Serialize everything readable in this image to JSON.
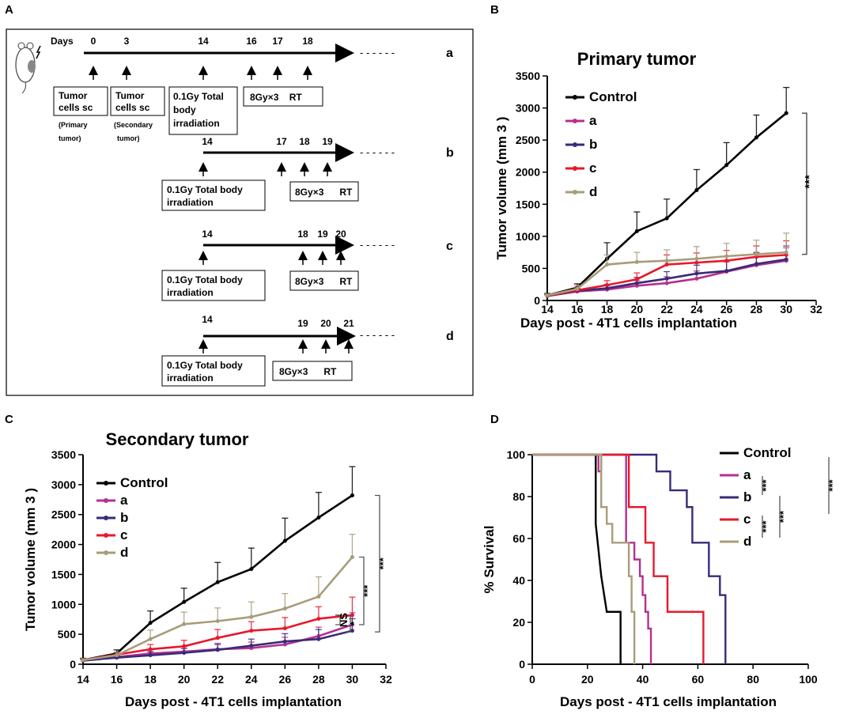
{
  "panels": {
    "A": "A",
    "B": "B",
    "C": "C",
    "D": "D"
  },
  "schema": {
    "days_label": "Days",
    "group_names": [
      "a",
      "b",
      "c",
      "d"
    ],
    "dashes": "- - - - - -",
    "row_a": {
      "days": [
        "0",
        "3",
        "14",
        "16",
        "17",
        "18"
      ],
      "box_tumor": "Tumor",
      "box_cells": "cells sc",
      "box_primary": "(Primary",
      "box_primary2": "tumor)",
      "box_secondary": "(Secondary",
      "box_secondary2": "tumor)",
      "tbi_line1": "0.1Gy Total",
      "tbi_line2": "body",
      "tbi_line3": "irradiation",
      "rt_text": "8Gy×3    RT"
    },
    "row_b": {
      "days": [
        "14",
        "17",
        "18",
        "19"
      ],
      "tbi_line1": "0.1Gy Total body",
      "tbi_line2": "irradiation",
      "rt_text": "8Gy×3      RT"
    },
    "row_c": {
      "days": [
        "14",
        "18",
        "19",
        "20"
      ],
      "tbi_line1": "0.1Gy Total body",
      "tbi_line2": "irradiation",
      "rt_text": "8Gy×3      RT"
    },
    "row_d": {
      "days": [
        "14",
        "19",
        "20",
        "21"
      ],
      "tbi_line1": "0.1Gy Total body",
      "tbi_line2": "irradiation",
      "rt_text": "8Gy×3      RT"
    }
  },
  "colors": {
    "Control": "#000000",
    "a": "#b5308f",
    "b": "#3a2a78",
    "c": "#e8182c",
    "d": "#a89d7a"
  },
  "chart_data": [
    {
      "panel": "B",
      "type": "line",
      "title": "Primary tumor",
      "xlabel": "Days post - 4T1 cells implantation",
      "ylabel": "Tumor volume (mm 3 )",
      "xlim": [
        14,
        32
      ],
      "ylim": [
        0,
        3500
      ],
      "xticks": [
        14,
        16,
        18,
        20,
        22,
        24,
        26,
        28,
        30,
        32
      ],
      "yticks": [
        0,
        500,
        1000,
        1500,
        2000,
        2500,
        3000,
        3500
      ],
      "x": [
        14,
        16,
        18,
        20,
        22,
        24,
        26,
        28,
        30
      ],
      "legend": [
        "Control",
        "a",
        "b",
        "c",
        "d"
      ],
      "series": [
        {
          "name": "Control",
          "values": [
            80,
            200,
            650,
            1080,
            1280,
            1720,
            2110,
            2540,
            2920
          ],
          "err": [
            30,
            60,
            250,
            300,
            300,
            320,
            350,
            350,
            400
          ]
        },
        {
          "name": "a",
          "values": [
            70,
            140,
            170,
            230,
            270,
            340,
            450,
            550,
            620
          ],
          "err": [
            20,
            40,
            60,
            80,
            100,
            120,
            150,
            180,
            200
          ]
        },
        {
          "name": "b",
          "values": [
            70,
            150,
            190,
            270,
            340,
            420,
            460,
            570,
            640
          ],
          "err": [
            20,
            40,
            60,
            90,
            110,
            130,
            160,
            180,
            210
          ]
        },
        {
          "name": "c",
          "values": [
            75,
            160,
            240,
            330,
            560,
            590,
            620,
            680,
            710
          ],
          "err": [
            20,
            40,
            70,
            100,
            150,
            150,
            160,
            170,
            220
          ]
        },
        {
          "name": "d",
          "values": [
            80,
            180,
            560,
            600,
            620,
            650,
            690,
            720,
            750
          ],
          "err": [
            20,
            50,
            150,
            150,
            170,
            190,
            200,
            220,
            300
          ]
        }
      ],
      "annotations": [
        "***"
      ]
    },
    {
      "panel": "C",
      "type": "line",
      "title": "Secondary tumor",
      "xlabel": "Days post - 4T1 cells implantation",
      "ylabel": "Tumor volume (mm 3 )",
      "xlim": [
        14,
        32
      ],
      "ylim": [
        0,
        3500
      ],
      "xticks": [
        14,
        16,
        18,
        20,
        22,
        24,
        26,
        28,
        30,
        32
      ],
      "yticks": [
        0,
        500,
        1000,
        1500,
        2000,
        2500,
        3000,
        3500
      ],
      "x": [
        14,
        16,
        18,
        20,
        22,
        24,
        26,
        28,
        30
      ],
      "legend": [
        "Control",
        "a",
        "b",
        "c",
        "d"
      ],
      "series": [
        {
          "name": "Control",
          "values": [
            70,
            180,
            690,
            1040,
            1370,
            1590,
            2060,
            2450,
            2820
          ],
          "err": [
            30,
            60,
            200,
            230,
            330,
            350,
            380,
            420,
            480
          ]
        },
        {
          "name": "a",
          "values": [
            60,
            120,
            180,
            210,
            250,
            270,
            330,
            470,
            660
          ],
          "err": [
            20,
            40,
            60,
            80,
            100,
            100,
            120,
            150,
            200
          ]
        },
        {
          "name": "b",
          "values": [
            60,
            110,
            150,
            190,
            240,
            310,
            380,
            420,
            560
          ],
          "err": [
            20,
            40,
            60,
            70,
            90,
            110,
            130,
            160,
            200
          ]
        },
        {
          "name": "c",
          "values": [
            70,
            160,
            250,
            300,
            440,
            560,
            600,
            760,
            820
          ],
          "err": [
            20,
            40,
            80,
            100,
            140,
            150,
            180,
            200,
            300
          ]
        },
        {
          "name": "d",
          "values": [
            70,
            150,
            420,
            670,
            720,
            790,
            930,
            1130,
            1790
          ],
          "err": [
            20,
            50,
            150,
            200,
            220,
            250,
            250,
            330,
            380
          ]
        }
      ],
      "annotations": [
        "***",
        "***",
        "*",
        "NS"
      ]
    },
    {
      "panel": "D",
      "type": "line",
      "subtype": "survival-step",
      "xlabel": "Days post - 4T1 cells implantation",
      "ylabel": "% Survival",
      "xlim": [
        0,
        100
      ],
      "ylim": [
        0,
        100
      ],
      "xticks": [
        0,
        20,
        40,
        60,
        80,
        100
      ],
      "yticks": [
        0,
        20,
        40,
        60,
        80,
        100
      ],
      "legend": [
        "Control",
        "a",
        "b",
        "c",
        "d"
      ],
      "series": [
        {
          "name": "Control",
          "steps": [
            [
              0,
              100
            ],
            [
              23,
              100
            ],
            [
              23,
              67
            ],
            [
              25,
              42
            ],
            [
              27,
              25
            ],
            [
              32,
              25
            ],
            [
              32,
              0
            ]
          ]
        },
        {
          "name": "a",
          "steps": [
            [
              0,
              100
            ],
            [
              24,
              100
            ],
            [
              24,
              92
            ],
            [
              25,
              92
            ],
            [
              25,
              100
            ],
            [
              34,
              100
            ],
            [
              34,
              58
            ],
            [
              37,
              58
            ],
            [
              37,
              50
            ],
            [
              39,
              50
            ],
            [
              39,
              42
            ],
            [
              40,
              42
            ],
            [
              40,
              33
            ],
            [
              41,
              33
            ],
            [
              41,
              25
            ],
            [
              42,
              25
            ],
            [
              42,
              17
            ],
            [
              43,
              17
            ],
            [
              43,
              0
            ]
          ]
        },
        {
          "name": "b",
          "steps": [
            [
              0,
              100
            ],
            [
              45,
              100
            ],
            [
              45,
              92
            ],
            [
              50,
              92
            ],
            [
              50,
              83
            ],
            [
              56,
              83
            ],
            [
              56,
              75
            ],
            [
              58,
              75
            ],
            [
              58,
              58
            ],
            [
              64,
              58
            ],
            [
              64,
              42
            ],
            [
              68,
              42
            ],
            [
              68,
              33
            ],
            [
              70,
              33
            ],
            [
              70,
              0
            ]
          ]
        },
        {
          "name": "c",
          "steps": [
            [
              0,
              100
            ],
            [
              35,
              100
            ],
            [
              35,
              75
            ],
            [
              41,
              75
            ],
            [
              41,
              58
            ],
            [
              44,
              58
            ],
            [
              44,
              42
            ],
            [
              49,
              42
            ],
            [
              49,
              25
            ],
            [
              62,
              25
            ],
            [
              62,
              0
            ]
          ]
        },
        {
          "name": "d",
          "steps": [
            [
              0,
              100
            ],
            [
              25,
              100
            ],
            [
              25,
              75
            ],
            [
              27,
              75
            ],
            [
              27,
              67
            ],
            [
              29,
              67
            ],
            [
              29,
              58
            ],
            [
              34,
              58
            ],
            [
              34,
              58
            ],
            [
              35,
              58
            ],
            [
              35,
              42
            ],
            [
              36,
              42
            ],
            [
              36,
              25
            ],
            [
              37,
              25
            ],
            [
              37,
              0
            ]
          ]
        }
      ],
      "annotations": [
        "***",
        "***",
        "***",
        "***"
      ]
    }
  ]
}
